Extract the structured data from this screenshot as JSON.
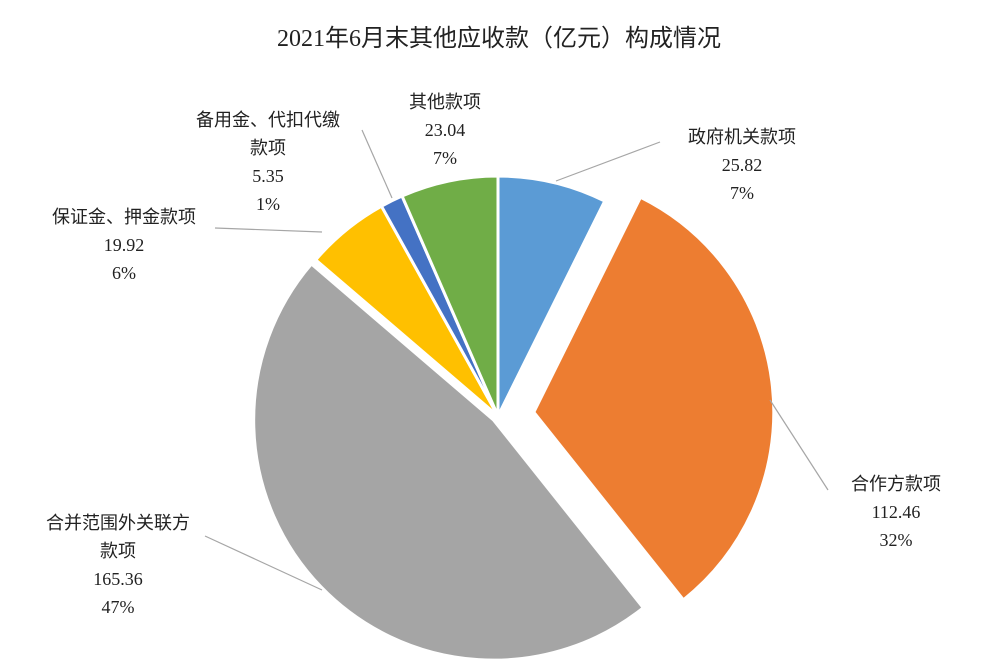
{
  "chart_data": {
    "type": "pie",
    "title": "2021年6月末其他应收款（亿元）构成情况",
    "categories": [
      "政府机关款项",
      "合作方款项",
      "合并范围外关联方款项",
      "保证金、押金款项",
      "备用金、代扣代缴款项",
      "其他款项"
    ],
    "values": [
      25.82,
      112.46,
      165.36,
      19.92,
      5.35,
      23.04
    ],
    "percent_labels": [
      "7%",
      "32%",
      "47%",
      "6%",
      "1%",
      "7%"
    ],
    "colors": [
      "#5b9bd5",
      "#ed7d31",
      "#a5a5a5",
      "#ffc000",
      "#4472c4",
      "#70ad47"
    ]
  }
}
